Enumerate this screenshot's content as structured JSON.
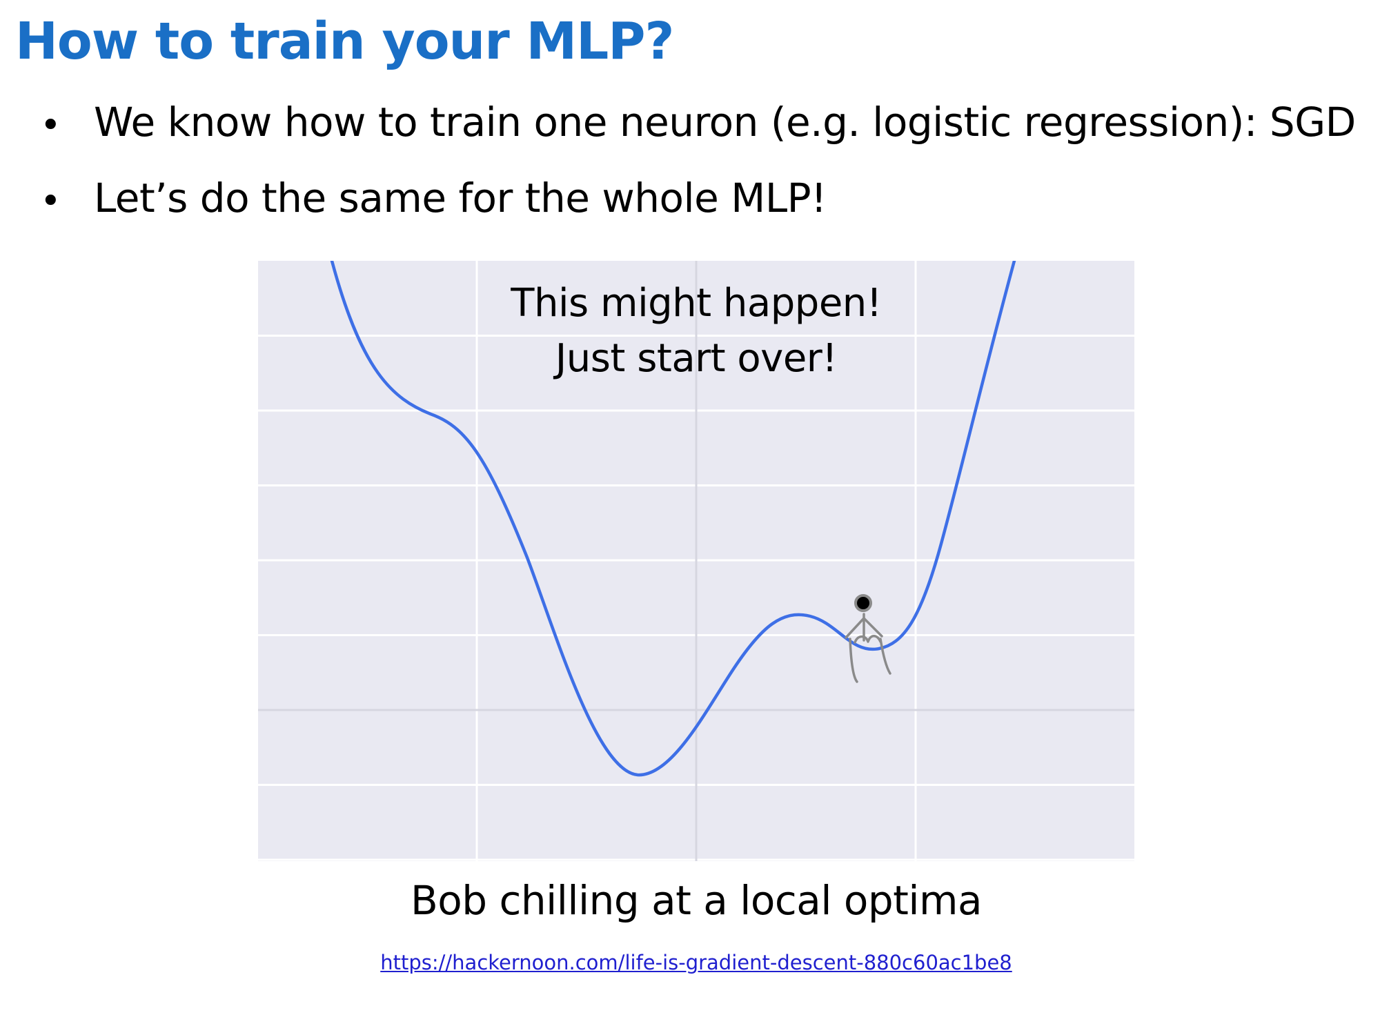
{
  "slide": {
    "title": "How to train your MLP?",
    "bullets": [
      {
        "marker": "•",
        "text": "We know how to train one neuron (e.g. logistic regression): SGD"
      },
      {
        "marker": "•",
        "text": "Let’s do the same for the whole MLP!"
      }
    ]
  },
  "figure": {
    "annotation_lines": [
      "This might happen!",
      "Just start over!"
    ],
    "caption": "Bob chilling at a local optima",
    "source_url": "https://hackernoon.com/life-is-gradient-descent-880c60ac1be8",
    "colors": {
      "title": "#1a6fc6",
      "background": "#e9e9f2",
      "grid": "#ffffff",
      "axis": "#d6d6e0",
      "curve": "#3e6fe6",
      "stick_figure": "#8a8a8a",
      "ball": "#000000"
    },
    "curve_shape": [
      "steep-descent",
      "shoulder",
      "global-minimum",
      "local-maximum",
      "local-minimum",
      "steep-ascent"
    ],
    "stick_figure_icon": "person-sitting-icon",
    "ball_icon": "ball-icon"
  }
}
